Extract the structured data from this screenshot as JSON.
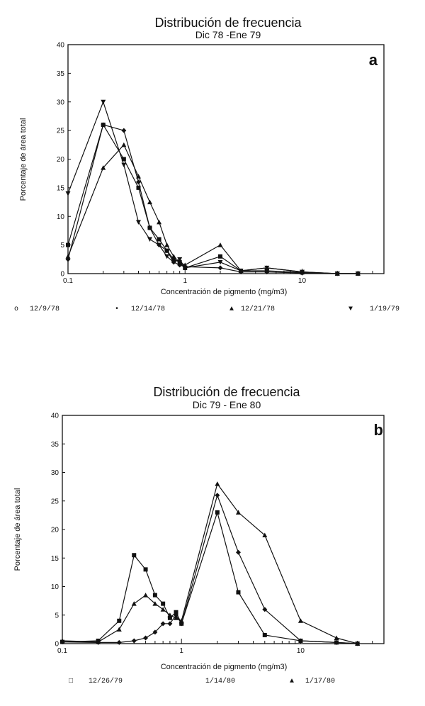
{
  "chart_data": [
    {
      "type": "line",
      "title": "Distribución de frecuencia",
      "subtitle": "Dic 78 -Ene 79",
      "panel_label": "a",
      "xlabel": "Concentración de pigmento (mg/m3)",
      "ylabel": "Porcentaje de área total",
      "xscale": "log",
      "xlim": [
        0.1,
        50
      ],
      "ylim": [
        0,
        40
      ],
      "x_ticks": [
        0.1,
        1,
        10
      ],
      "x_tick_labels": [
        "0.1",
        "1",
        "10"
      ],
      "y_ticks": [
        0,
        5,
        10,
        15,
        20,
        25,
        30,
        35,
        40
      ],
      "y_tick_labels": [
        "0",
        "5",
        "10",
        "15",
        "20",
        "25",
        "30",
        "35",
        "40"
      ],
      "legend_position": "bottom",
      "series": [
        {
          "name": "12/9/78",
          "marker": "square",
          "legend_symbol": "o",
          "x": [
            0.1,
            0.2,
            0.3,
            0.4,
            0.5,
            0.6,
            0.7,
            0.8,
            0.9,
            1,
            2,
            3,
            5,
            10,
            20,
            30
          ],
          "values": [
            5,
            26,
            20,
            15,
            8,
            6,
            4,
            2.5,
            2,
            1,
            3,
            0.5,
            0.5,
            0.2,
            0,
            0
          ]
        },
        {
          "name": "12/14/78",
          "marker": "diamond",
          "legend_symbol": "•",
          "x": [
            0.1,
            0.2,
            0.3,
            0.4,
            0.5,
            0.6,
            0.7,
            0.8,
            0.9,
            1,
            2,
            3,
            5,
            10,
            20,
            30
          ],
          "values": [
            2.5,
            26,
            25,
            16,
            8,
            5,
            4,
            2,
            1.5,
            1.2,
            1,
            0.3,
            0.3,
            0.1,
            0,
            0
          ]
        },
        {
          "name": "12/21/78",
          "marker": "triangle",
          "legend_symbol": "▲",
          "x": [
            0.1,
            0.2,
            0.3,
            0.4,
            0.5,
            0.6,
            0.7,
            0.8,
            0.9,
            1,
            2,
            3,
            5,
            10,
            20,
            30
          ],
          "values": [
            3,
            18.5,
            22.5,
            17,
            12.5,
            9,
            5,
            3,
            2,
            1.5,
            5,
            0.5,
            1,
            0.3,
            0,
            0
          ]
        },
        {
          "name": "1/19/79",
          "marker": "triangle-down",
          "legend_symbol": "▼",
          "x": [
            0.1,
            0.2,
            0.3,
            0.4,
            0.5,
            0.6,
            0.7,
            0.8,
            0.9,
            1,
            2,
            3,
            5,
            10,
            20,
            30
          ],
          "values": [
            14,
            30,
            19,
            9,
            6,
            5,
            3,
            2,
            2.5,
            1,
            2,
            0.5,
            1,
            0.3,
            0,
            0
          ]
        }
      ]
    },
    {
      "type": "line",
      "title": "Distribución de frecuencia",
      "subtitle": "Dic 79 - Ene 80",
      "panel_label": "b",
      "xlabel": "Concentración de pigmento (mg/m3)",
      "ylabel": "Porcentaje de área total",
      "xscale": "log",
      "xlim": [
        0.1,
        50
      ],
      "ylim": [
        0,
        40
      ],
      "x_ticks": [
        0.1,
        1,
        10
      ],
      "x_tick_labels": [
        "0.1",
        "1",
        "10"
      ],
      "y_ticks": [
        0,
        5,
        10,
        15,
        20,
        25,
        30,
        35,
        40
      ],
      "y_tick_labels": [
        "0",
        "5",
        "10",
        "15",
        "20",
        "25",
        "30",
        "35",
        "40"
      ],
      "legend_position": "bottom",
      "series": [
        {
          "name": "12/26/79",
          "marker": "square",
          "legend_symbol": "□",
          "x": [
            0.1,
            0.2,
            0.3,
            0.4,
            0.5,
            0.6,
            0.7,
            0.8,
            0.9,
            1,
            2,
            3,
            5,
            10,
            20,
            30
          ],
          "values": [
            0.3,
            0.5,
            4,
            15.5,
            13,
            8.5,
            7,
            4.5,
            5.5,
            3.5,
            23,
            9,
            1.5,
            0.5,
            0.2,
            0
          ]
        },
        {
          "name": "1/14/80",
          "marker": "diamond",
          "legend_symbol": "",
          "x": [
            0.1,
            0.2,
            0.3,
            0.4,
            0.5,
            0.6,
            0.7,
            0.8,
            0.9,
            1,
            2,
            3,
            5,
            10,
            20,
            30
          ],
          "values": [
            0.3,
            0.2,
            0.2,
            0.5,
            1,
            2,
            3.5,
            3.5,
            5,
            3.5,
            26,
            16,
            6,
            0.5,
            0.2,
            0
          ]
        },
        {
          "name": "1/17/80",
          "marker": "triangle",
          "legend_symbol": "▲",
          "x": [
            0.1,
            0.2,
            0.3,
            0.4,
            0.5,
            0.6,
            0.7,
            0.8,
            0.9,
            1,
            2,
            3,
            5,
            10,
            20,
            30
          ],
          "values": [
            0.5,
            0.3,
            2.5,
            7,
            8.5,
            7,
            6,
            5,
            4.5,
            4,
            28,
            23,
            19,
            4,
            1,
            0
          ]
        }
      ]
    }
  ]
}
